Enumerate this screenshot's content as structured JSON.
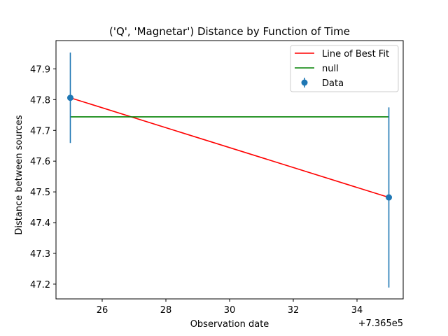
{
  "chart_data": {
    "type": "line",
    "title": "('Q', 'Magnetar') Distance by Function of Time",
    "xlabel": "Observation date",
    "ylabel": "Distance between sources",
    "x_offset_label": "+7.365e5",
    "xlim": [
      24.55,
      35.45
    ],
    "ylim": [
      47.152,
      47.992
    ],
    "xticks": [
      26,
      28,
      30,
      32,
      34
    ],
    "yticks": [
      47.2,
      47.3,
      47.4,
      47.5,
      47.6,
      47.7,
      47.8,
      47.9
    ],
    "grid": false,
    "legend_position": "upper right",
    "series": [
      {
        "name": "Line of Best Fit",
        "kind": "line",
        "color": "#ff0000",
        "x": [
          25,
          35
        ],
        "y": [
          47.806,
          47.482
        ]
      },
      {
        "name": "null",
        "kind": "line",
        "color": "#008000",
        "x": [
          25,
          35
        ],
        "y": [
          47.744,
          47.744
        ]
      },
      {
        "name": "Data",
        "kind": "errorbar",
        "color": "#1f77b4",
        "x": [
          25,
          35
        ],
        "y": [
          47.806,
          47.482
        ],
        "yerr": [
          0.147,
          0.293
        ]
      }
    ]
  }
}
